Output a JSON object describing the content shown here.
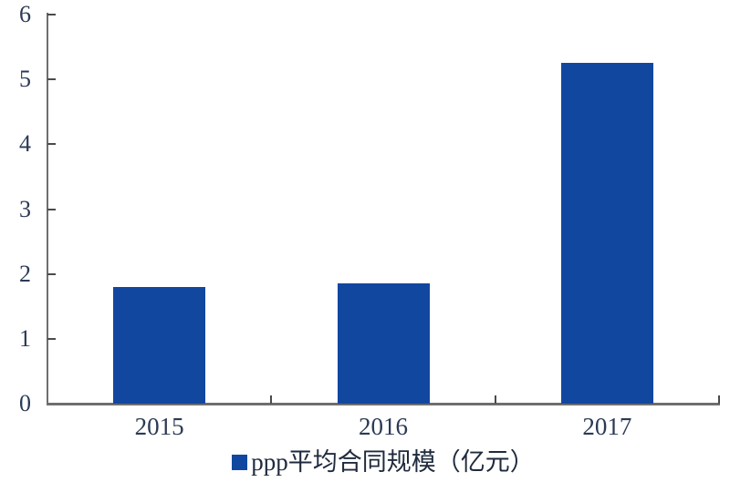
{
  "chart_data": {
    "type": "bar",
    "categories": [
      "2015",
      "2016",
      "2017"
    ],
    "values": [
      1.8,
      1.86,
      5.25
    ],
    "legend": "ppp平均合同规模（亿元）",
    "title": "",
    "xlabel": "",
    "ylabel": "",
    "ylim": [
      0,
      6
    ],
    "yticks": [
      0,
      1,
      2,
      3,
      4,
      5,
      6
    ],
    "grid": false,
    "legend_position": "bottom-center",
    "colors": {
      "bar": "#11479F",
      "axis_line": "#6e6e6e",
      "tick_mark": "#4a4a4a",
      "axis_label": "#2b3a55",
      "legend_text": "#1f2a3d",
      "background": "#ffffff"
    }
  }
}
